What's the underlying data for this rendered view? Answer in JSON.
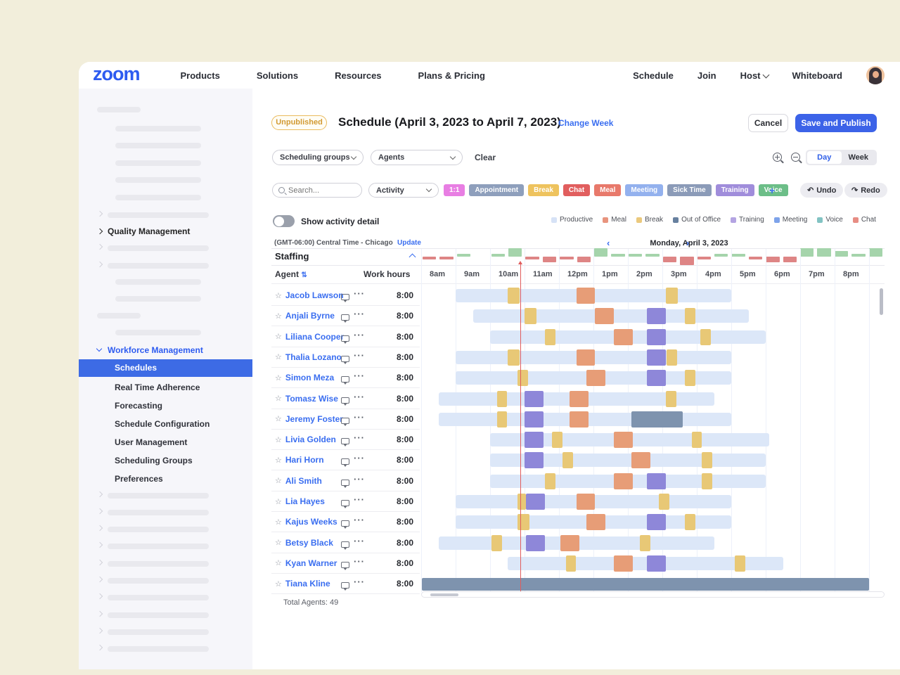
{
  "nav": {
    "logo": "zoom",
    "items": [
      "Products",
      "Solutions",
      "Resources",
      "Plans & Pricing"
    ],
    "right_items": [
      "Schedule",
      "Join",
      "Host",
      "Whiteboard"
    ]
  },
  "sidebar": {
    "quality_management": "Quality Management",
    "workforce_management": "Workforce Management",
    "selected_item": "Schedules",
    "items": [
      "Real Time Adherence",
      "Forecasting",
      "Schedule Configuration",
      "User Management",
      "Scheduling Groups",
      "Preferences"
    ]
  },
  "header": {
    "badge": "Unpublished",
    "title": "Schedule (April 3, 2023 to April 7, 2023)",
    "change_week": "Change Week",
    "cancel": "Cancel",
    "save": "Save and Publish"
  },
  "filters": {
    "group_select": "Scheduling groups",
    "agent_select": "Agents",
    "clear": "Clear",
    "day": "Day",
    "week": "Week"
  },
  "toolbar": {
    "search_placeholder": "Search...",
    "activity_select": "Activity",
    "add": "+",
    "undo": "Undo",
    "redo": "Redo",
    "chips": [
      {
        "label": "1:1",
        "color": "#e87ee3"
      },
      {
        "label": "Appointment",
        "color": "#8e9fbc"
      },
      {
        "label": "Break",
        "color": "#eec35e"
      },
      {
        "label": "Chat",
        "color": "#e15e5e"
      },
      {
        "label": "Meal",
        "color": "#e8796b"
      },
      {
        "label": "Meeting",
        "color": "#93b1ee"
      },
      {
        "label": "Sick Time",
        "color": "#8b9bb8"
      },
      {
        "label": "Training",
        "color": "#a08ddb"
      },
      {
        "label": "Voice",
        "color": "#6cbe88"
      }
    ]
  },
  "activity_toggle": {
    "label": "Show activity detail",
    "state": "off"
  },
  "legend": [
    {
      "label": "Productive",
      "color": "#d6e2f6"
    },
    {
      "label": "Meal",
      "color": "#e8947e"
    },
    {
      "label": "Break",
      "color": "#ebc97d"
    },
    {
      "label": "Out of Office",
      "color": "#67809f"
    },
    {
      "label": "Training",
      "color": "#b4a4e2"
    },
    {
      "label": "Meeting",
      "color": "#7ea3ea"
    },
    {
      "label": "Voice",
      "color": "#82c3c3"
    },
    {
      "label": "Chat",
      "color": "#e78d84"
    }
  ],
  "schedule": {
    "timezone": "(GMT-06:00) Central Time - Chicago",
    "update": "Update",
    "date": "Monday, April 3, 2023",
    "staffing_label": "Staffing",
    "agent_header": "Agent",
    "work_hours_header": "Work hours",
    "times": [
      "8am",
      "9am",
      "10am",
      "11am",
      "12pm",
      "1pm",
      "2pm",
      "3pm",
      "4pm",
      "5pm",
      "6pm",
      "7pm",
      "8pm"
    ],
    "total_agents": "Total Agents: 49",
    "staffing_values": [
      -1,
      -1,
      1,
      0,
      1,
      3,
      -1,
      -2,
      -1,
      -2,
      3,
      1,
      1,
      1,
      -2,
      -3,
      -1,
      1,
      1,
      -1,
      -2,
      -2,
      3,
      3,
      2,
      1,
      3
    ]
  },
  "block_colors": {
    "productive": "#dce7f8",
    "break": "#e8c876",
    "meal": "#e79d77",
    "meeting": "#8e87d9",
    "ooo": "#7e93ae",
    "staffing_over": "#a5d4ab",
    "staffing_under": "#de8585",
    "now_line": "#e05c5c",
    "accent": "#3a6ef0"
  },
  "agents": [
    {
      "name": "Jacob Lawson",
      "hours": "8:00",
      "base": [
        9,
        17
      ],
      "blocks": [
        [
          "break",
          10.5,
          10.85
        ],
        [
          "meal",
          12.5,
          13.05
        ],
        [
          "break",
          15.1,
          15.45
        ]
      ]
    },
    {
      "name": "Anjali Byrne",
      "hours": "8:00",
      "base": [
        9.5,
        17.5
      ],
      "blocks": [
        [
          "break",
          11,
          11.35
        ],
        [
          "meal",
          13.05,
          13.6
        ],
        [
          "meeting",
          14.55,
          15.1
        ],
        [
          "break",
          15.65,
          15.95
        ]
      ]
    },
    {
      "name": "Liliana Cooper",
      "hours": "8:00",
      "base": [
        10,
        18
      ],
      "blocks": [
        [
          "break",
          11.6,
          11.9
        ],
        [
          "meal",
          13.6,
          14.15
        ],
        [
          "meeting",
          14.55,
          15.1
        ],
        [
          "break",
          16.1,
          16.4
        ]
      ]
    },
    {
      "name": "Thalia Lozano",
      "hours": "8:00",
      "base": [
        9,
        17
      ],
      "blocks": [
        [
          "break",
          10.5,
          10.85
        ],
        [
          "meal",
          12.5,
          13.05
        ],
        [
          "meeting",
          14.55,
          15.1
        ],
        [
          "break",
          15.12,
          15.42
        ]
      ]
    },
    {
      "name": "Simon Meza",
      "hours": "8:00",
      "base": [
        9,
        17
      ],
      "blocks": [
        [
          "break",
          10.8,
          11.1
        ],
        [
          "meal",
          12.8,
          13.35
        ],
        [
          "meeting",
          14.55,
          15.1
        ],
        [
          "break",
          15.65,
          15.95
        ]
      ]
    },
    {
      "name": "Tomasz Wise",
      "hours": "8:00",
      "base": [
        8.5,
        16.5
      ],
      "blocks": [
        [
          "break",
          10.2,
          10.5
        ],
        [
          "meeting",
          11,
          11.55
        ],
        [
          "meal",
          12.3,
          12.85
        ],
        [
          "break",
          15.1,
          15.4
        ]
      ]
    },
    {
      "name": "Jeremy Foster",
      "hours": "8:00",
      "base": [
        8.5,
        17
      ],
      "blocks": [
        [
          "break",
          10.2,
          10.5
        ],
        [
          "meeting",
          11,
          11.55
        ],
        [
          "meal",
          12.3,
          12.85
        ],
        [
          "ooo",
          14.1,
          15.6
        ]
      ]
    },
    {
      "name": "Livia Golden",
      "hours": "8:00",
      "base": [
        10,
        18.1
      ],
      "blocks": [
        [
          "meeting",
          11,
          11.55
        ],
        [
          "break",
          11.8,
          12.1
        ],
        [
          "meal",
          13.6,
          14.15
        ],
        [
          "break",
          15.85,
          16.15
        ]
      ]
    },
    {
      "name": "Hari Horn",
      "hours": "8:00",
      "base": [
        10,
        18
      ],
      "blocks": [
        [
          "meeting",
          11,
          11.55
        ],
        [
          "break",
          12.1,
          12.4
        ],
        [
          "meal",
          14.1,
          14.65
        ],
        [
          "break",
          16.15,
          16.45
        ]
      ]
    },
    {
      "name": "Ali Smith",
      "hours": "8:00",
      "base": [
        10,
        18
      ],
      "blocks": [
        [
          "break",
          11.6,
          11.9
        ],
        [
          "meal",
          13.6,
          14.15
        ],
        [
          "meeting",
          14.55,
          15.1
        ],
        [
          "break",
          16.15,
          16.45
        ]
      ]
    },
    {
      "name": "Lia Hayes",
      "hours": "8:00",
      "base": [
        9,
        17
      ],
      "blocks": [
        [
          "break",
          10.8,
          11.05
        ],
        [
          "meeting",
          11.05,
          11.6
        ],
        [
          "meal",
          12.5,
          13.05
        ],
        [
          "break",
          14.9,
          15.2
        ]
      ]
    },
    {
      "name": "Kajus Weeks",
      "hours": "8:00",
      "base": [
        9,
        17
      ],
      "blocks": [
        [
          "break",
          10.8,
          11.15
        ],
        [
          "meal",
          12.8,
          13.35
        ],
        [
          "meeting",
          14.55,
          15.1
        ],
        [
          "break",
          15.65,
          15.95
        ]
      ]
    },
    {
      "name": "Betsy Black",
      "hours": "8:00",
      "base": [
        8.5,
        16.5
      ],
      "blocks": [
        [
          "break",
          10.05,
          10.35
        ],
        [
          "meeting",
          11.05,
          11.6
        ],
        [
          "meal",
          12.05,
          12.6
        ],
        [
          "break",
          14.35,
          14.65
        ]
      ]
    },
    {
      "name": "Kyan Warner",
      "hours": "8:00",
      "base": [
        10.5,
        18.5
      ],
      "blocks": [
        [
          "break",
          12.2,
          12.5
        ],
        [
          "meal",
          13.6,
          14.15
        ],
        [
          "meeting",
          14.55,
          15.1
        ],
        [
          "break",
          17.1,
          17.4
        ]
      ]
    },
    {
      "name": "Tiana Kline",
      "hours": "8:00",
      "base": null,
      "blocks": [
        [
          "ooo",
          8.02,
          21.0
        ]
      ]
    }
  ]
}
